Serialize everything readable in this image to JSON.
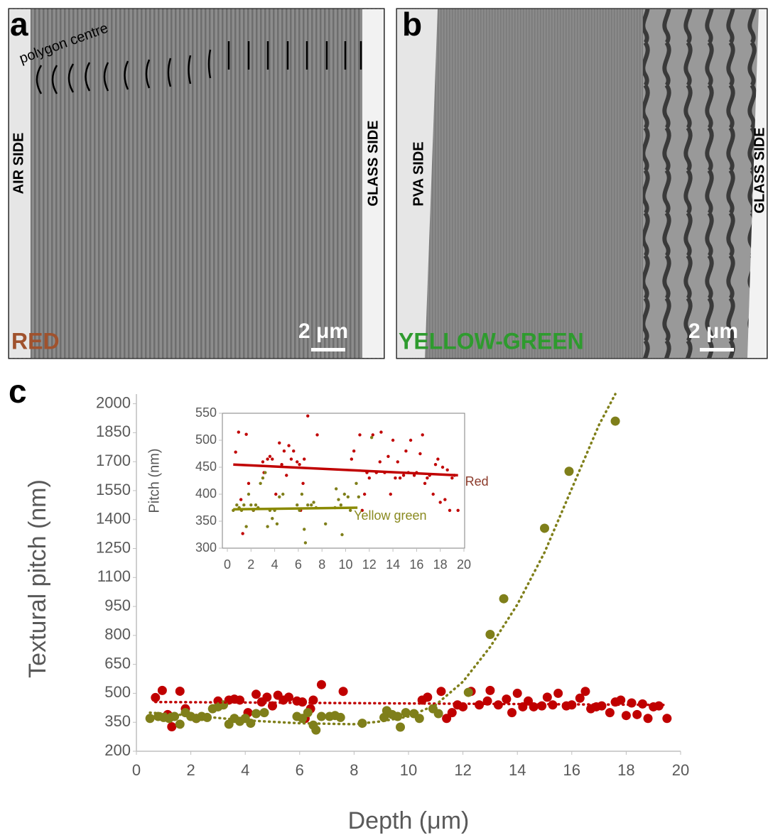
{
  "figure": {
    "panels": [
      {
        "label": "a",
        "annotation": "polygon centre",
        "left_side": "AIR SIDE",
        "right_side": "GLASS SIDE",
        "sample": "RED",
        "scale_bar": "2 μm"
      },
      {
        "label": "b",
        "left_side": "PVA SIDE",
        "right_side": "GLASS SIDE",
        "sample": "YELLOW-GREEN",
        "scale_bar": "2 μm"
      },
      {
        "label": "c"
      }
    ]
  },
  "chart_data": [
    {
      "type": "scatter",
      "x_label": "Depth (μm)",
      "y_label": "Textural pitch (nm)",
      "xlim": [
        0,
        20
      ],
      "xticks": [
        0,
        2,
        4,
        6,
        8,
        10,
        12,
        14,
        16,
        18,
        20
      ],
      "ylim": [
        200,
        2050
      ],
      "yticks": [
        200,
        350,
        500,
        650,
        800,
        950,
        1100,
        1250,
        1400,
        1550,
        1700,
        1850,
        2000
      ],
      "series": [
        {
          "color": "#c00000",
          "x": [
            0.7,
            0.95,
            1.15,
            1.3,
            1.6,
            1.8,
            2.2,
            3.0,
            3.1,
            3.4,
            3.6,
            3.8,
            4.1,
            4.4,
            4.6,
            4.8,
            5.0,
            5.2,
            5.4,
            5.6,
            5.9,
            6.1,
            6.2,
            6.4,
            6.5,
            6.8,
            7.6,
            10.5,
            10.7,
            11.2,
            11.4,
            11.6,
            11.8,
            12.0,
            12.3,
            12.6,
            12.9,
            13.0,
            13.3,
            13.6,
            13.8,
            14.0,
            14.2,
            14.4,
            14.6,
            14.9,
            15.1,
            15.3,
            15.5,
            15.8,
            16.0,
            16.3,
            16.5,
            16.7,
            16.9,
            17.1,
            17.4,
            17.6,
            17.8,
            18.0,
            18.2,
            18.4,
            18.6,
            18.8,
            19.0,
            19.2,
            19.5
          ],
          "values": [
            478,
            515,
            390,
            327,
            511,
            420,
            370,
            460,
            440,
            465,
            470,
            465,
            400,
            495,
            455,
            480,
            435,
            490,
            465,
            480,
            460,
            455,
            370,
            420,
            465,
            545,
            510,
            465,
            480,
            510,
            370,
            400,
            440,
            430,
            510,
            440,
            460,
            515,
            440,
            470,
            400,
            500,
            430,
            460,
            430,
            435,
            480,
            440,
            500,
            435,
            440,
            475,
            510,
            420,
            430,
            435,
            400,
            455,
            465,
            385,
            450,
            390,
            445,
            370,
            430,
            435,
            370
          ]
        },
        {
          "color": "#7f7f1a",
          "x": [
            0.5,
            0.8,
            1.0,
            1.2,
            1.4,
            1.6,
            1.8,
            2.0,
            2.2,
            2.4,
            2.6,
            2.8,
            3.0,
            3.2,
            3.4,
            3.6,
            3.8,
            4.0,
            4.2,
            4.4,
            4.7,
            5.9,
            6.1,
            6.3,
            6.5,
            6.6,
            6.8,
            7.1,
            7.3,
            7.5,
            8.3,
            9.1,
            9.2,
            9.4,
            9.6,
            9.7,
            9.9,
            10.2,
            10.4,
            10.9,
            11.1,
            12.2,
            13.0,
            13.5,
            15.0,
            15.9,
            17.6
          ],
          "values": [
            370,
            380,
            375,
            370,
            380,
            340,
            400,
            380,
            370,
            380,
            375,
            420,
            430,
            440,
            340,
            370,
            355,
            370,
            345,
            395,
            400,
            380,
            370,
            400,
            335,
            310,
            380,
            380,
            385,
            375,
            345,
            375,
            410,
            390,
            380,
            325,
            400,
            395,
            370,
            420,
            395,
            505,
            805,
            990,
            1355,
            1650,
            1910
          ]
        }
      ],
      "trendlines": [
        {
          "color": "#c00000",
          "style": "dotted",
          "x": [
            0.7,
            19.5
          ],
          "values": [
            455,
            440
          ]
        },
        {
          "color": "#7f7f1a",
          "style": "dotted",
          "x": [
            0.5,
            2,
            4,
            6,
            8,
            9,
            10,
            11,
            12,
            13,
            14,
            15,
            16,
            17,
            17.6
          ],
          "values": [
            400,
            385,
            360,
            345,
            340,
            355,
            380,
            440,
            560,
            740,
            960,
            1230,
            1560,
            1890,
            2050
          ]
        }
      ]
    },
    {
      "type": "line",
      "y_label": "Pitch (nm)",
      "xlim": [
        0,
        20
      ],
      "xticks": [
        0,
        2,
        4,
        6,
        8,
        10,
        12,
        14,
        16,
        18,
        20
      ],
      "ylim": [
        300,
        550
      ],
      "yticks": [
        300,
        350,
        400,
        450,
        500,
        550
      ],
      "series": [
        {
          "name": "Red",
          "color": "#c00000",
          "x": [
            0.5,
            19.5
          ],
          "values": [
            455,
            435
          ]
        },
        {
          "name": "Yellow green",
          "color": "#8a8a00",
          "x": [
            0.5,
            11
          ],
          "values": [
            372,
            375
          ]
        }
      ]
    }
  ]
}
